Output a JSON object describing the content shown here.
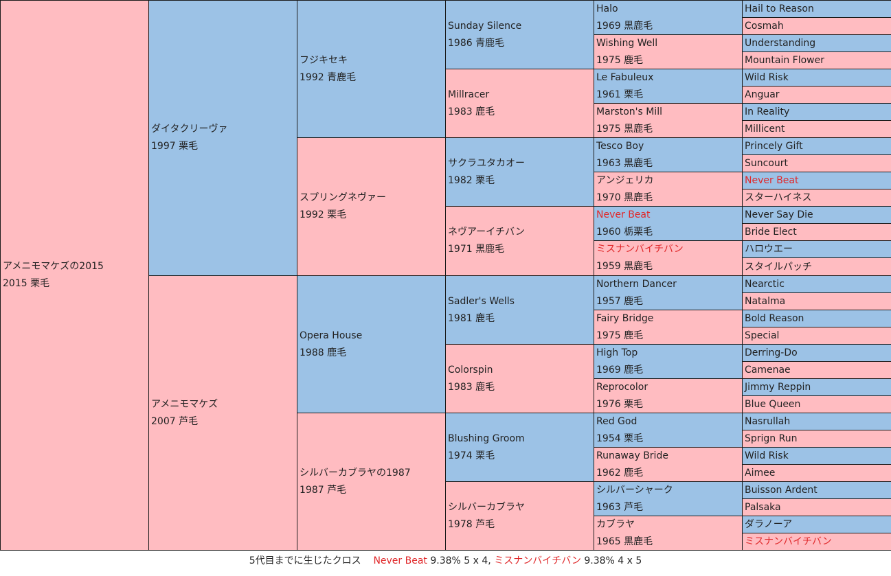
{
  "subject": {
    "name": "アメニモマケズの2015",
    "info": "2015 栗毛"
  },
  "g1": [
    {
      "name": "ダイタクリーヴァ",
      "info": "1997 栗毛",
      "sex": "m"
    },
    {
      "name": "アメニモマケズ",
      "info": "2007 芦毛",
      "sex": "f"
    }
  ],
  "g2": [
    {
      "name": "フジキセキ",
      "info": "1992 青鹿毛",
      "sex": "m"
    },
    {
      "name": "スプリングネヴァー",
      "info": "1992 栗毛",
      "sex": "f"
    },
    {
      "name": "Opera House",
      "info": "1988 鹿毛",
      "sex": "m"
    },
    {
      "name": "シルバーカブラヤの1987",
      "info": "1987 芦毛",
      "sex": "f"
    }
  ],
  "g3": [
    {
      "name": "Sunday Silence",
      "info": "1986 青鹿毛",
      "sex": "m"
    },
    {
      "name": "Millracer",
      "info": "1983 鹿毛",
      "sex": "f"
    },
    {
      "name": "サクラユタカオー",
      "info": "1982 栗毛",
      "sex": "m"
    },
    {
      "name": "ネヴアーイチバン",
      "info": "1971 黒鹿毛",
      "sex": "f"
    },
    {
      "name": "Sadler's Wells",
      "info": "1981 鹿毛",
      "sex": "m"
    },
    {
      "name": "Colorspin",
      "info": "1983 鹿毛",
      "sex": "f"
    },
    {
      "name": "Blushing Groom",
      "info": "1974 栗毛",
      "sex": "m"
    },
    {
      "name": "シルバーカブラヤ",
      "info": "1978 芦毛",
      "sex": "f"
    }
  ],
  "g4": [
    {
      "name": "Halo",
      "info": "1969 黒鹿毛",
      "sex": "m",
      "cross": false
    },
    {
      "name": "Wishing Well",
      "info": "1975 鹿毛",
      "sex": "f",
      "cross": false
    },
    {
      "name": "Le Fabuleux",
      "info": "1961 栗毛",
      "sex": "m",
      "cross": false
    },
    {
      "name": "Marston's Mill",
      "info": "1975 黒鹿毛",
      "sex": "f",
      "cross": false
    },
    {
      "name": "Tesco Boy",
      "info": "1963 黒鹿毛",
      "sex": "m",
      "cross": false
    },
    {
      "name": "アンジェリカ",
      "info": "1970 黒鹿毛",
      "sex": "f",
      "cross": false
    },
    {
      "name": "Never Beat",
      "info": "1960 栃栗毛",
      "sex": "m",
      "cross": true
    },
    {
      "name": "ミスナンバイチバン",
      "info": "1959 黒鹿毛",
      "sex": "f",
      "cross": true
    },
    {
      "name": "Northern Dancer",
      "info": "1957 鹿毛",
      "sex": "m",
      "cross": false
    },
    {
      "name": "Fairy Bridge",
      "info": "1975 鹿毛",
      "sex": "f",
      "cross": false
    },
    {
      "name": "High Top",
      "info": "1969 鹿毛",
      "sex": "m",
      "cross": false
    },
    {
      "name": "Reprocolor",
      "info": "1976 栗毛",
      "sex": "f",
      "cross": false
    },
    {
      "name": "Red God",
      "info": "1954 栗毛",
      "sex": "m",
      "cross": false
    },
    {
      "name": "Runaway Bride",
      "info": "1962 鹿毛",
      "sex": "f",
      "cross": false
    },
    {
      "name": "シルバーシャーク",
      "info": "1963 芦毛",
      "sex": "m",
      "cross": false
    },
    {
      "name": "カブラヤ",
      "info": "1965 黒鹿毛",
      "sex": "f",
      "cross": false
    }
  ],
  "g5": [
    {
      "name": "Hail to Reason",
      "sex": "m",
      "cross": false
    },
    {
      "name": "Cosmah",
      "sex": "f",
      "cross": false
    },
    {
      "name": "Understanding",
      "sex": "m",
      "cross": false
    },
    {
      "name": "Mountain Flower",
      "sex": "f",
      "cross": false
    },
    {
      "name": "Wild Risk",
      "sex": "m",
      "cross": false
    },
    {
      "name": "Anguar",
      "sex": "f",
      "cross": false
    },
    {
      "name": "In Reality",
      "sex": "m",
      "cross": false
    },
    {
      "name": "Millicent",
      "sex": "f",
      "cross": false
    },
    {
      "name": "Princely Gift",
      "sex": "m",
      "cross": false
    },
    {
      "name": "Suncourt",
      "sex": "f",
      "cross": false
    },
    {
      "name": "Never Beat",
      "sex": "m",
      "cross": true
    },
    {
      "name": "スターハイネス",
      "sex": "f",
      "cross": false
    },
    {
      "name": "Never Say Die",
      "sex": "m",
      "cross": false
    },
    {
      "name": "Bride Elect",
      "sex": "f",
      "cross": false
    },
    {
      "name": "ハロウエー",
      "sex": "m",
      "cross": false
    },
    {
      "name": "スタイルパッチ",
      "sex": "f",
      "cross": false
    },
    {
      "name": "Nearctic",
      "sex": "m",
      "cross": false
    },
    {
      "name": "Natalma",
      "sex": "f",
      "cross": false
    },
    {
      "name": "Bold Reason",
      "sex": "m",
      "cross": false
    },
    {
      "name": "Special",
      "sex": "f",
      "cross": false
    },
    {
      "name": "Derring-Do",
      "sex": "m",
      "cross": false
    },
    {
      "name": "Camenae",
      "sex": "f",
      "cross": false
    },
    {
      "name": "Jimmy Reppin",
      "sex": "m",
      "cross": false
    },
    {
      "name": "Blue Queen",
      "sex": "f",
      "cross": false
    },
    {
      "name": "Nasrullah",
      "sex": "m",
      "cross": false
    },
    {
      "name": "Sprign Run",
      "sex": "f",
      "cross": false
    },
    {
      "name": "Wild Risk",
      "sex": "m",
      "cross": false
    },
    {
      "name": "Aimee",
      "sex": "f",
      "cross": false
    },
    {
      "name": "Buisson Ardent",
      "sex": "m",
      "cross": false
    },
    {
      "name": "Palsaka",
      "sex": "f",
      "cross": false
    },
    {
      "name": "ダラノーア",
      "sex": "m",
      "cross": false
    },
    {
      "name": "ミスナンバイチバン",
      "sex": "f",
      "cross": true
    }
  ],
  "cross_summary": {
    "prefix": "5代目までに生じたクロス",
    "items": [
      {
        "name": "Never Beat",
        "detail": "9.38% 5 x 4,"
      },
      {
        "name": "ミスナンバイチバン",
        "detail": "9.38% 4 x 5"
      }
    ]
  },
  "colors": {
    "male": "#9cc2e6",
    "female": "#ffbcc1",
    "cross_text": "#e0282a",
    "border": "#1a1a1a"
  }
}
